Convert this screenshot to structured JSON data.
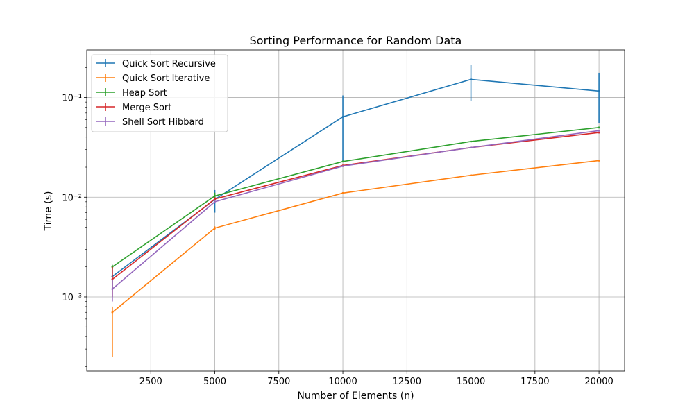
{
  "chart_data": {
    "type": "line",
    "title": "Sorting Performance for Random Data",
    "xlabel": "Number of Elements (n)",
    "ylabel": "Time (s)",
    "x": [
      1000,
      5000,
      10000,
      15000,
      20000
    ],
    "xlim": [
      0,
      21000
    ],
    "ylim": [
      0.00018,
      0.3
    ],
    "yscale": "log",
    "grid": true,
    "legend_position": "top-left",
    "x_ticks": [
      2500,
      5000,
      7500,
      10000,
      12500,
      15000,
      17500,
      20000
    ],
    "x_tick_labels": [
      "2500",
      "5000",
      "7500",
      "10000",
      "12500",
      "15000",
      "17500",
      "20000"
    ],
    "y_ticks": [
      0.001,
      0.01,
      0.1
    ],
    "y_tick_labels": [
      "10⁻³",
      "10⁻²",
      "10⁻¹"
    ],
    "series": [
      {
        "name": "Quick Sort Recursive",
        "color": "#1f77b4",
        "values": [
          0.0016,
          0.0095,
          0.064,
          0.152,
          0.116
        ],
        "errors": [
          [
            0.0004,
            0.0004
          ],
          [
            0.0025,
            0.0023
          ],
          [
            0.041,
            0.041
          ],
          [
            0.059,
            0.059
          ],
          [
            0.061,
            0.061
          ]
        ]
      },
      {
        "name": "Quick Sort Iterative",
        "color": "#ff7f0e",
        "values": [
          0.0007,
          0.0049,
          0.011,
          0.0166,
          0.0233
        ],
        "errors": [
          [
            0.00045,
            0.0001
          ],
          [
            0.0002,
            0.0002
          ],
          [
            0.0002,
            0.0002
          ],
          [
            0.0002,
            0.0002
          ],
          [
            0.0003,
            0.0003
          ]
        ]
      },
      {
        "name": "Heap Sort",
        "color": "#2ca02c",
        "values": [
          0.002,
          0.0103,
          0.0228,
          0.0362,
          0.05
        ],
        "errors": [
          [
            0.0001,
            0.0001
          ],
          [
            0.0008,
            0.0008
          ],
          [
            0.0002,
            0.0002
          ],
          [
            0.0003,
            0.0003
          ],
          [
            0.0004,
            0.0004
          ]
        ]
      },
      {
        "name": "Merge Sort",
        "color": "#d62728",
        "values": [
          0.0015,
          0.0096,
          0.0208,
          0.0315,
          0.0445
        ],
        "errors": [
          [
            0.0005,
            0.0005
          ],
          [
            0.0004,
            0.0004
          ],
          [
            0.0002,
            0.0002
          ],
          [
            0.0003,
            0.0003
          ],
          [
            0.0004,
            0.0004
          ]
        ]
      },
      {
        "name": "Shell Sort Hibbard",
        "color": "#9467bd",
        "values": [
          0.0012,
          0.009,
          0.0205,
          0.0315,
          0.0465
        ],
        "errors": [
          [
            0.0003,
            0.0003
          ],
          [
            0.0003,
            0.0003
          ],
          [
            0.0002,
            0.0002
          ],
          [
            0.0003,
            0.0003
          ],
          [
            0.0004,
            0.0004
          ]
        ]
      }
    ]
  }
}
